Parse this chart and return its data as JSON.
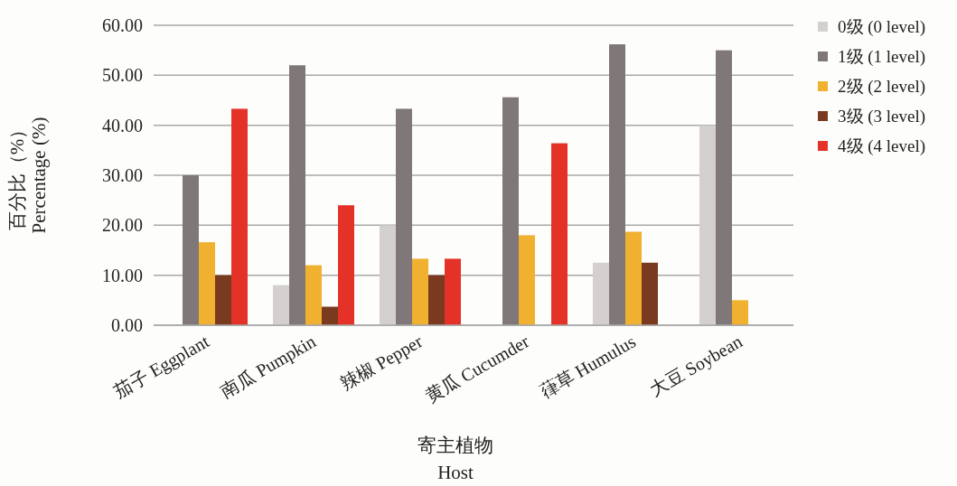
{
  "chart_data": {
    "type": "bar",
    "xlabel": "寄主植物\nHost",
    "ylabel": "百分比（%）\nPercentage (%)",
    "categories": [
      "茄子 Eggplant",
      "南瓜 Pumpkin",
      "辣椒 Pepper",
      "黄瓜 Cucumder",
      "葎草 Humulus",
      "大豆 Soybean"
    ],
    "series": [
      {
        "name": "0级 (0 level)",
        "color": "#d3d0cf",
        "values": [
          0,
          8,
          20,
          0,
          12.5,
          40
        ]
      },
      {
        "name": "1级 (1 level)",
        "color": "#807878",
        "values": [
          30,
          52,
          43.3,
          45.6,
          56.2,
          55
        ]
      },
      {
        "name": "2级 (2 level)",
        "color": "#f0b030",
        "values": [
          16.6,
          12,
          13.3,
          18,
          18.7,
          5
        ]
      },
      {
        "name": "3级 (3 level)",
        "color": "#7a3a20",
        "values": [
          10,
          3.7,
          10,
          0,
          12.5,
          0
        ]
      },
      {
        "name": "4级 (4 level)",
        "color": "#e53228",
        "values": [
          43.3,
          24,
          13.3,
          36.4,
          0,
          0
        ]
      }
    ],
    "ylim": [
      0,
      60
    ],
    "yticks": [
      {
        "value": 0,
        "label": "0.00"
      },
      {
        "value": 10,
        "label": "10.00"
      },
      {
        "value": 20,
        "label": "20.00"
      },
      {
        "value": 30,
        "label": "30.00"
      },
      {
        "value": 40,
        "label": "40.00"
      },
      {
        "value": 50,
        "label": "50.00"
      },
      {
        "value": 60,
        "label": "60.00"
      }
    ],
    "grid": "y",
    "legend": "right"
  }
}
